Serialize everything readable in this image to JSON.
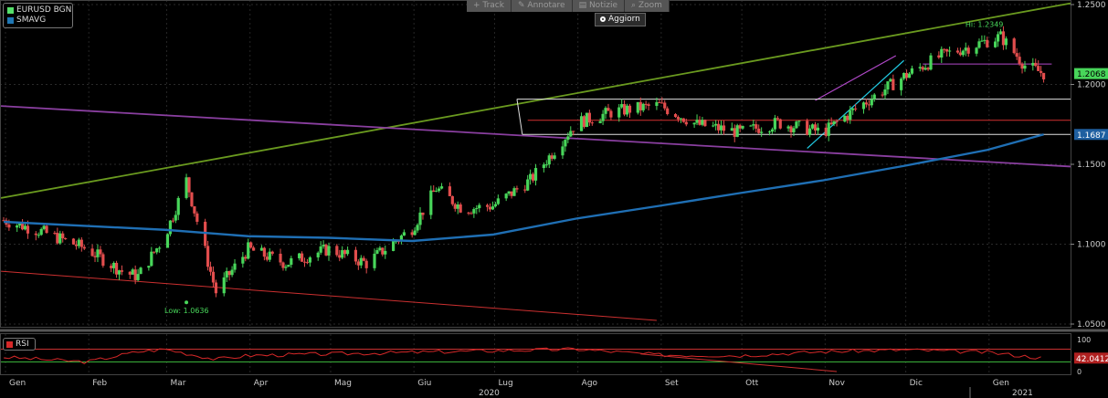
{
  "legend": [
    {
      "label": "EURUSD BGN",
      "color": "#55e06a"
    },
    {
      "label": "SMAVG",
      "color": "#1f77b4"
    }
  ],
  "rsi_legend": {
    "label": "RSI",
    "color": "#d62828"
  },
  "toolbar": [
    {
      "label": "Track",
      "icon": "plus-icon"
    },
    {
      "label": "Annotare",
      "icon": "pencil-icon"
    },
    {
      "label": "Notizie",
      "icon": "news-icon"
    },
    {
      "label": "Zoom",
      "icon": "magnifier-icon"
    }
  ],
  "refresh_label": "Aggiorn",
  "annotations": {
    "high": "Hi: 1.2349",
    "low": "Low: 1.0636"
  },
  "colors": {
    "bull": "#48d65a",
    "bear": "#e24d4d",
    "sma": "#1f6fb4",
    "trend_green": "#6a9a1f",
    "trend_purple": "#8a3fa0",
    "rsi": "#d62828"
  },
  "chart_data": [
    {
      "type": "candlestick",
      "title": "",
      "series": [
        {
          "name": "EURUSD BGN",
          "x": [
            "2020-01-01",
            "2020-01-15",
            "2020-02-01",
            "2020-02-15",
            "2020-02-20",
            "2020-03-01",
            "2020-03-09",
            "2020-03-20",
            "2020-04-01",
            "2020-04-15",
            "2020-05-01",
            "2020-05-15",
            "2020-06-01",
            "2020-06-10",
            "2020-06-20",
            "2020-07-01",
            "2020-07-15",
            "2020-08-01",
            "2020-08-15",
            "2020-09-01",
            "2020-09-15",
            "2020-10-01",
            "2020-10-15",
            "2020-11-01",
            "2020-11-15",
            "2020-12-01",
            "2020-12-15",
            "2021-01-06",
            "2021-01-15",
            "2021-01-22"
          ],
          "values": [
            1.115,
            1.108,
            1.097,
            1.082,
            1.08,
            1.105,
            1.14,
            1.07,
            1.097,
            1.088,
            1.097,
            1.088,
            1.11,
            1.135,
            1.122,
            1.124,
            1.14,
            1.176,
            1.183,
            1.187,
            1.175,
            1.17,
            1.176,
            1.17,
            1.187,
            1.205,
            1.218,
            1.23,
            1.212,
            1.2068
          ]
        },
        {
          "name": "SMAVG",
          "x": [
            "2020-01-01",
            "2020-03-01",
            "2020-04-01",
            "2020-05-01",
            "2020-06-01",
            "2020-07-01",
            "2020-08-01",
            "2020-09-01",
            "2020-10-01",
            "2020-11-01",
            "2020-12-01",
            "2021-01-01",
            "2021-01-22"
          ],
          "values": [
            1.114,
            1.109,
            1.105,
            1.104,
            1.102,
            1.106,
            1.116,
            1.124,
            1.132,
            1.14,
            1.149,
            1.159,
            1.1687
          ]
        }
      ],
      "last_price": "1.2068",
      "sma_last": "1.1687",
      "y_ticks": [
        "1.2500",
        "1.2000",
        "1.1500",
        "1.1000",
        "1.0500"
      ],
      "ylim": [
        1.05,
        1.25
      ],
      "high": 1.2349,
      "low": 1.0636,
      "levels": [
        1.1908,
        1.1776,
        1.1687
      ],
      "x_tick_labels": [
        "Gen",
        "Feb",
        "Mar",
        "Apr",
        "Mag",
        "Giu",
        "Lug",
        "Ago",
        "Set",
        "Ott",
        "Nov",
        "Dic",
        "Gen"
      ],
      "year_labels": [
        "2020",
        "2021"
      ]
    },
    {
      "type": "line",
      "title": "",
      "series": [
        {
          "name": "RSI",
          "x": [
            "2020-01-01",
            "2020-02-01",
            "2020-02-20",
            "2020-03-01",
            "2020-03-20",
            "2020-04-01",
            "2020-05-01",
            "2020-06-01",
            "2020-07-01",
            "2020-08-01",
            "2020-09-01",
            "2020-10-01",
            "2020-11-01",
            "2020-12-01",
            "2021-01-01",
            "2021-01-22"
          ],
          "values": [
            45,
            30,
            62,
            70,
            38,
            50,
            55,
            60,
            65,
            70,
            52,
            50,
            62,
            68,
            60,
            42.0412
          ]
        }
      ],
      "last_value": "42.0412",
      "y_ticks": [
        "100",
        "50",
        "0"
      ],
      "ylim": [
        0,
        100
      ]
    }
  ]
}
